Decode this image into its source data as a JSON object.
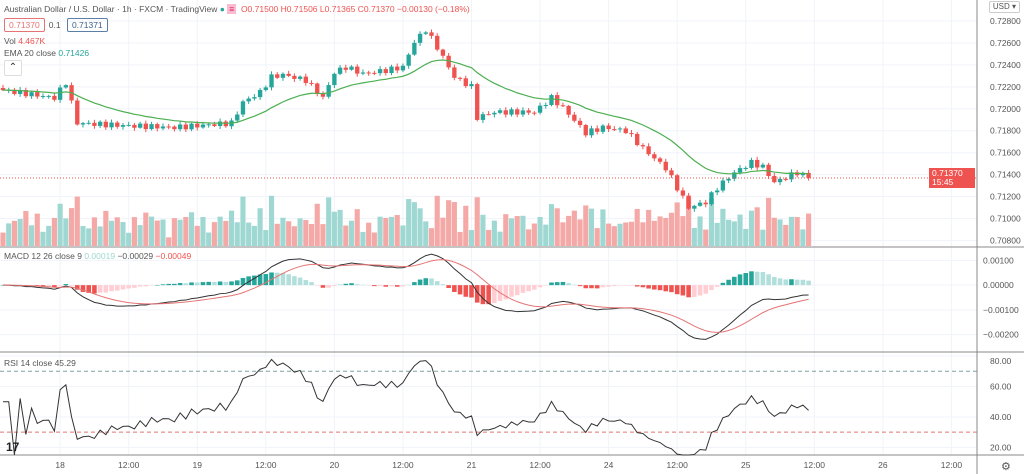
{
  "header": {
    "symbol": "Australian Dollar / U.S. Dollar · 1h · FXCM · TradingView",
    "ohlc": {
      "open": "O0.71500",
      "high": "H0.71506",
      "low": "L0.71365",
      "close": "C0.71370",
      "change": "−0.00130 (−0.18%)"
    },
    "bid": "0.71370",
    "spread": "0.1",
    "ask": "0.71371"
  },
  "indicators": {
    "vol_label": "Vol",
    "vol_value": "4.467K",
    "ema_label": "EMA 20 close",
    "ema_value": "0.71426",
    "macd_label": "MACD 12 26 close 9",
    "macd_hist": "0.00019",
    "macd_line": "−0.00029",
    "macd_signal": "−0.00049",
    "rsi_label": "RSI 14 close",
    "rsi_value": "45.29"
  },
  "currency_button": "USD ▾",
  "collapse_icon": "chevron-up-icon",
  "price_label": {
    "price": "0.71370",
    "countdown": "15:45"
  },
  "colors": {
    "up": "#26a69a",
    "down": "#ef5350",
    "ema": "#4caf50",
    "macd": "#333333",
    "signal": "#e57373",
    "rsi": "#333333"
  },
  "chart_data": {
    "type": "candlestick",
    "title": "Australian Dollar / U.S. Dollar · 1h · FXCM",
    "price_ticks": [
      "0.72800",
      "0.72600",
      "0.72400",
      "0.72200",
      "0.72000",
      "0.71800",
      "0.71600",
      "0.71400",
      "0.71200",
      "0.71000",
      "0.70800"
    ],
    "price_range": [
      0.7075,
      0.729
    ],
    "macd_ticks": [
      "0.00100",
      "0.00000",
      "−0.00100",
      "−0.00200"
    ],
    "macd_range": [
      -0.0027,
      0.0015
    ],
    "rsi_ticks": [
      "80.00",
      "60.00",
      "40.00",
      "20.00"
    ],
    "rsi_range": [
      15,
      82
    ],
    "rsi_bands": [
      70,
      30
    ],
    "x_ticks": [
      {
        "h": 10,
        "label": "18"
      },
      {
        "h": 22,
        "label": "12:00"
      },
      {
        "h": 34,
        "label": "19"
      },
      {
        "h": 46,
        "label": "12:00"
      },
      {
        "h": 58,
        "label": "20"
      },
      {
        "h": 70,
        "label": "12:00"
      },
      {
        "h": 82,
        "label": "21"
      },
      {
        "h": 94,
        "label": "12:00"
      },
      {
        "h": 106,
        "label": "24"
      },
      {
        "h": 118,
        "label": "12:00"
      },
      {
        "h": 130,
        "label": "25"
      },
      {
        "h": 142,
        "label": "12:00"
      },
      {
        "h": 154,
        "label": "26"
      },
      {
        "h": 166,
        "label": "12:00"
      }
    ],
    "hours_visible": 171,
    "close_keypoints": [
      [
        0,
        0.7217
      ],
      [
        9,
        0.721
      ],
      [
        11,
        0.7224
      ],
      [
        13,
        0.7187
      ],
      [
        20,
        0.7185
      ],
      [
        30,
        0.7183
      ],
      [
        40,
        0.7187
      ],
      [
        42,
        0.7206
      ],
      [
        45,
        0.7215
      ],
      [
        47,
        0.7229
      ],
      [
        49,
        0.7231
      ],
      [
        53,
        0.7226
      ],
      [
        56,
        0.721
      ],
      [
        58,
        0.7233
      ],
      [
        60,
        0.7238
      ],
      [
        63,
        0.7232
      ],
      [
        67,
        0.7235
      ],
      [
        70,
        0.7238
      ],
      [
        72,
        0.7261
      ],
      [
        74,
        0.7272
      ],
      [
        76,
        0.7256
      ],
      [
        79,
        0.7229
      ],
      [
        82,
        0.722
      ],
      [
        83,
        0.7192
      ],
      [
        86,
        0.7197
      ],
      [
        93,
        0.7197
      ],
      [
        96,
        0.721
      ],
      [
        98,
        0.7201
      ],
      [
        102,
        0.7178
      ],
      [
        105,
        0.7183
      ],
      [
        109,
        0.718
      ],
      [
        112,
        0.7164
      ],
      [
        116,
        0.7146
      ],
      [
        118,
        0.7128
      ],
      [
        120,
        0.711
      ],
      [
        123,
        0.7115
      ],
      [
        125,
        0.7128
      ],
      [
        128,
        0.7142
      ],
      [
        131,
        0.7151
      ],
      [
        133,
        0.7147
      ],
      [
        135,
        0.7133
      ],
      [
        139,
        0.7142
      ],
      [
        141,
        0.7137
      ]
    ],
    "last_close": 0.7137
  }
}
